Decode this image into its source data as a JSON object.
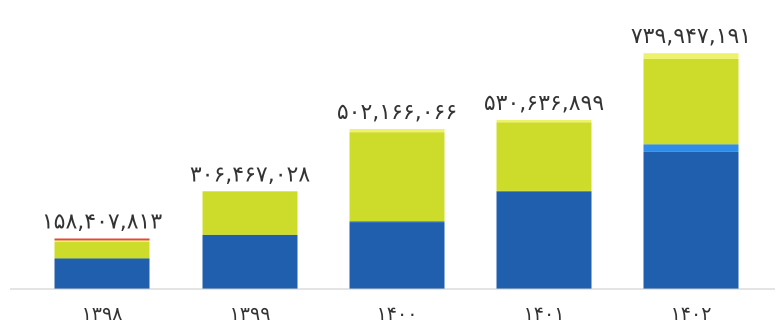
{
  "chart_data": {
    "type": "bar",
    "stacked": true,
    "categories": [
      "۱۳۹۸",
      "۱۳۹۹",
      "۱۴۰۰",
      "۱۴۰۱",
      "۱۴۰۲"
    ],
    "totals_text": [
      "۱۵۸,۴۰۷,۸۱۳",
      "۳۰۶,۴۶۷,۰۲۸",
      "۵۰۲,۱۶۶,۰۶۶",
      "۵۳۰,۶۳۶,۸۹۹",
      "۷۳۹,۹۴۷,۱۹۱"
    ],
    "totals": [
      158407813,
      306467028,
      502166066,
      530636899,
      739947191
    ],
    "series": [
      {
        "color": "#1f5fad",
        "values": [
          96000000,
          170000000,
          210000000,
          305000000,
          430000000
        ]
      },
      {
        "color": "#2f8ce8",
        "values": [
          0,
          0,
          3000000,
          3000000,
          24000000
        ]
      },
      {
        "color": "#cddc2a",
        "values": [
          52000000,
          136467028,
          279166066,
          214636899,
          267947191
        ]
      },
      {
        "color": "#eef26a",
        "values": [
          4407813,
          0,
          10000000,
          8000000,
          18000000
        ]
      },
      {
        "color": "#e8453c",
        "values": [
          6000000,
          0,
          0,
          0,
          0
        ]
      }
    ],
    "ylim": [
      0,
      750000000
    ],
    "grid": false,
    "legend": "none",
    "title": "",
    "xlabel": "",
    "ylabel": ""
  },
  "colors": {
    "axis": "#c8c8c8",
    "text": "#333333"
  }
}
